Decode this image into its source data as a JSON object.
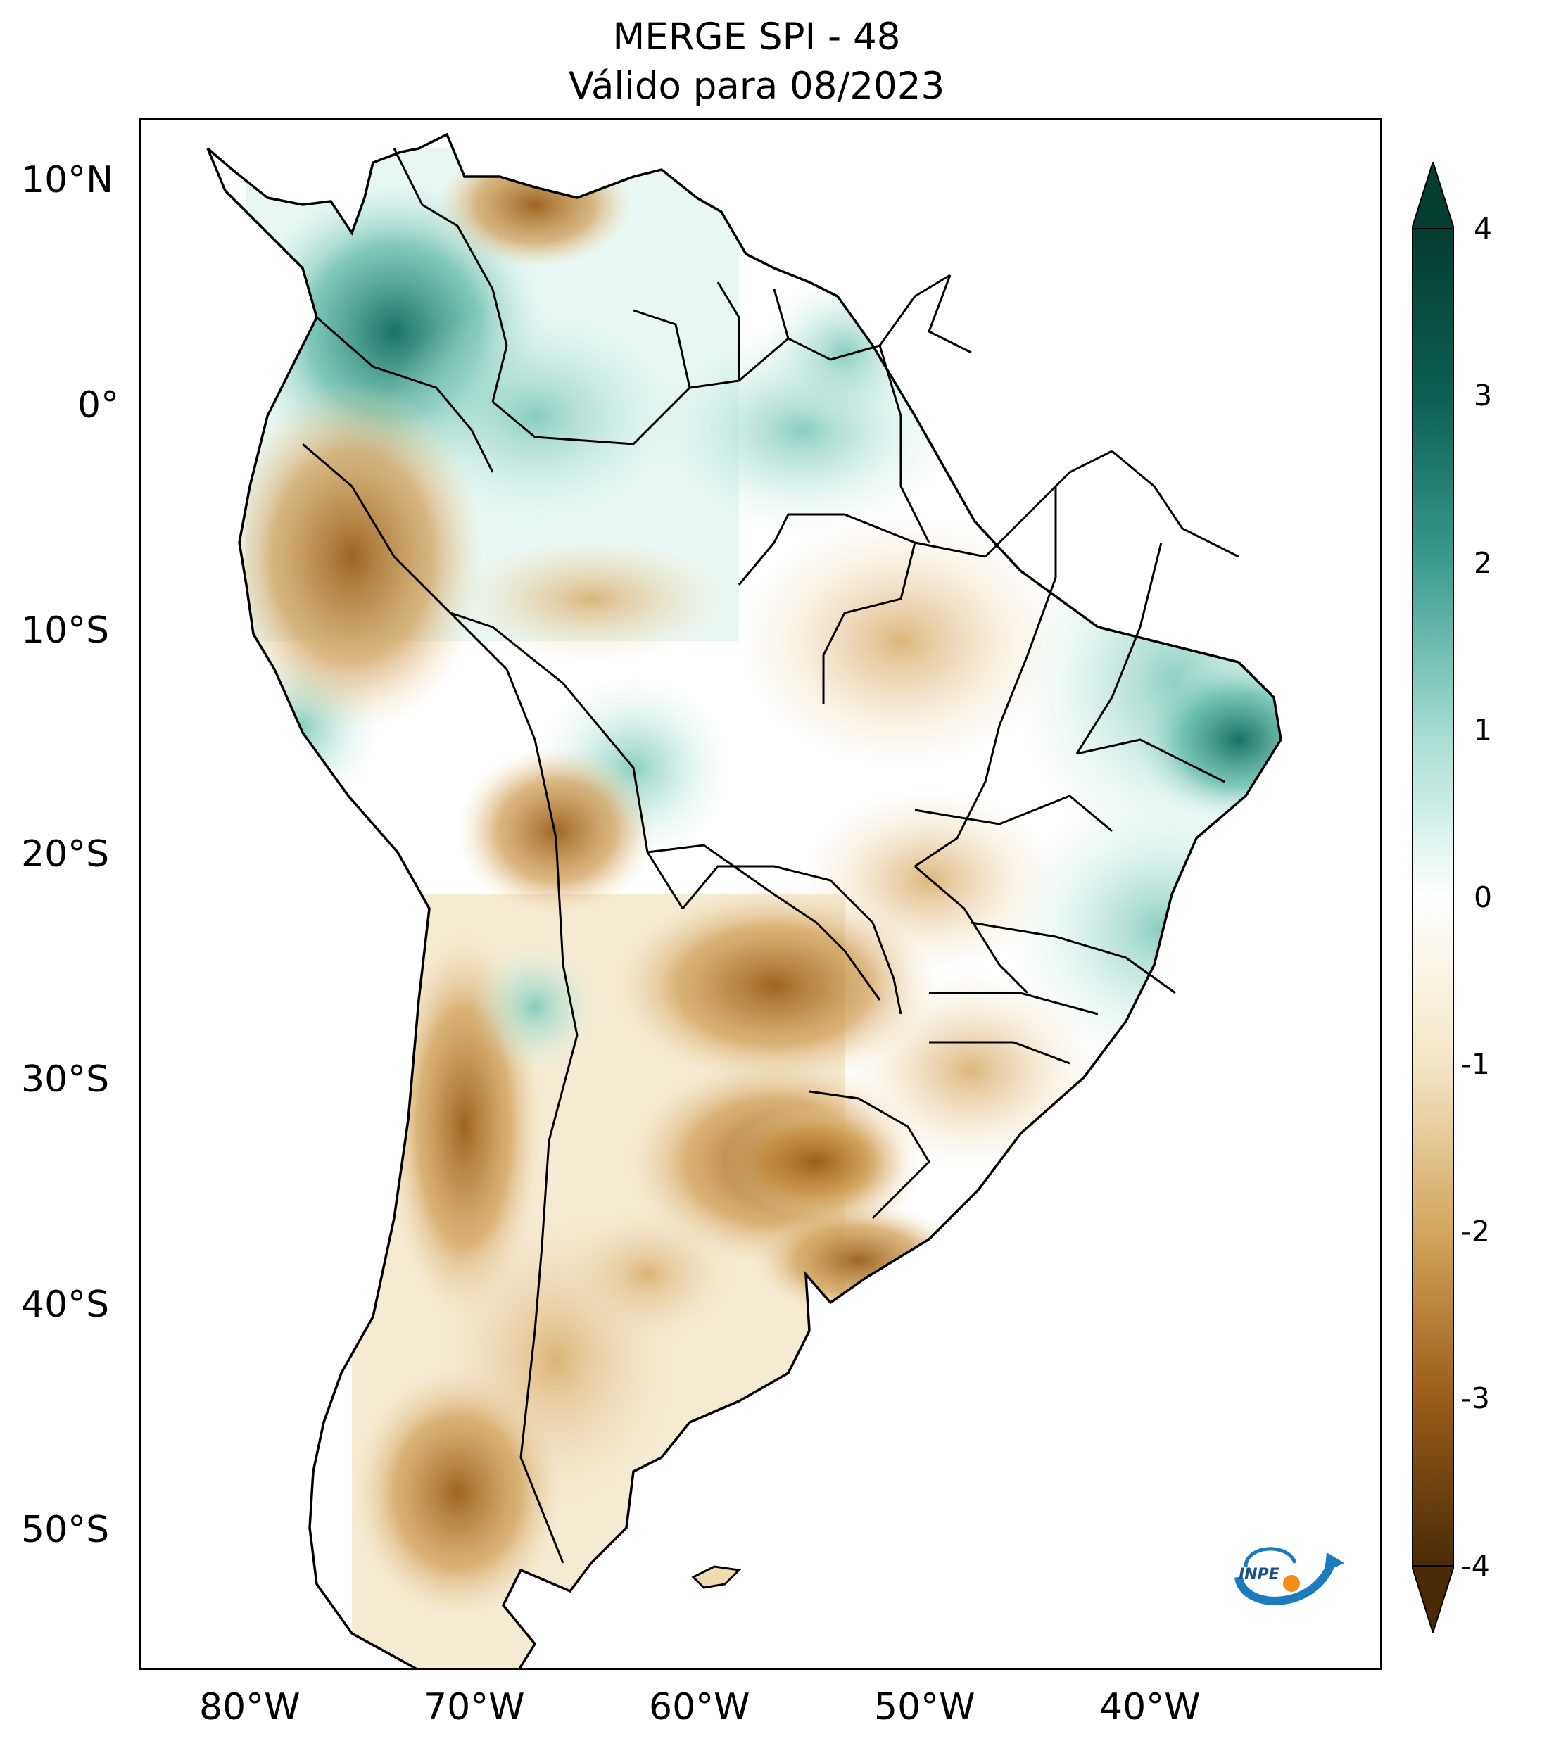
{
  "title": {
    "line1": "MERGE   SPI - 48",
    "line2": "Válido para 08/2023"
  },
  "map": {
    "lat_labels": [
      "10°N",
      "0°",
      "10°S",
      "20°S",
      "30°S",
      "40°S",
      "50°S"
    ],
    "lon_labels": [
      "80°W",
      "70°W",
      "60°W",
      "50°W",
      "40°W"
    ],
    "colors": {
      "wet_strong": "#0a5a4e",
      "wet_mid": "#4fb09f",
      "wet_light": "#c4ebe3",
      "neutral": "#ffffff",
      "dry_light": "#eddcb0",
      "dry_mid": "#c98f3c",
      "dry_strong": "#6b3e0b",
      "border": "#000000"
    }
  },
  "colorbar": {
    "ticks": [
      "4",
      "3",
      "2",
      "1",
      "0",
      "-1",
      "-2",
      "-3",
      "-4"
    ],
    "min": -4,
    "max": 4,
    "extend": "both"
  },
  "logo": {
    "text": "INPE"
  }
}
